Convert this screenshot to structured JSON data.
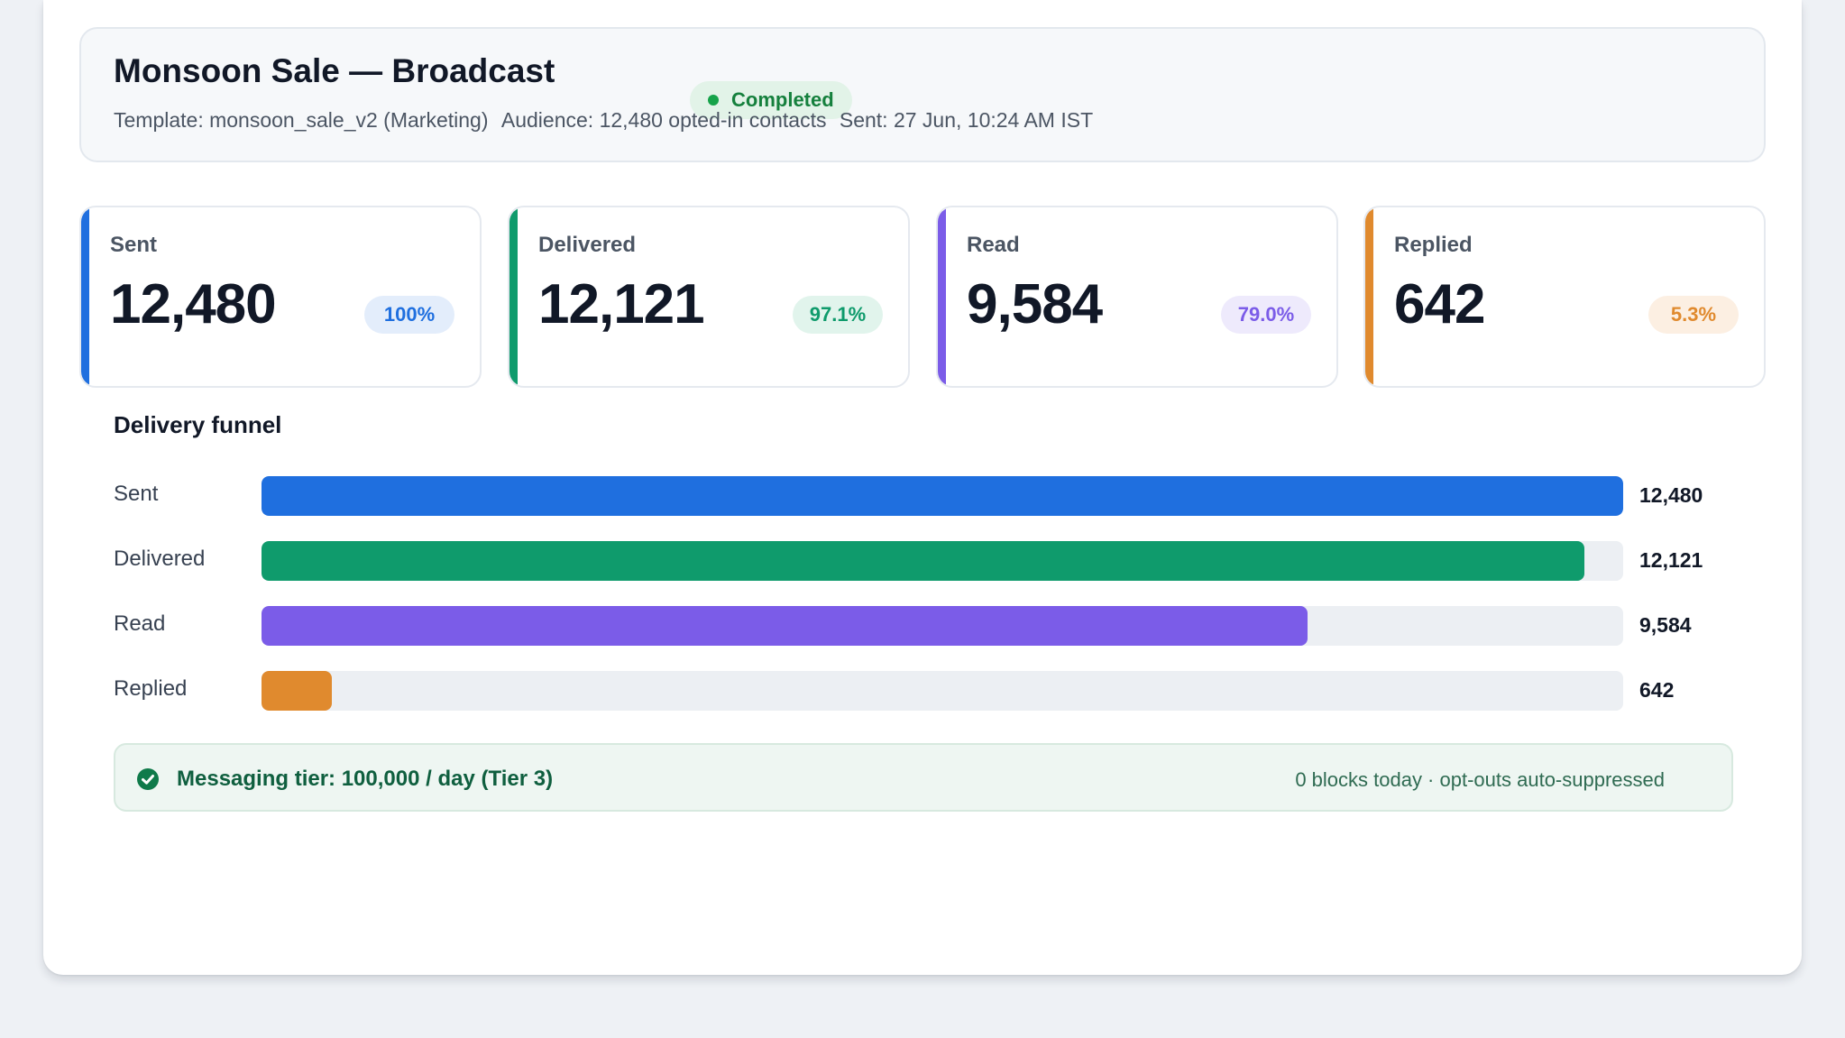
{
  "campaign": {
    "title": "Monsoon Sale — Broadcast",
    "status": "Completed",
    "template": "Template: monsoon_sale_v2 (Marketing)",
    "audience": "Audience: 12,480 opted-in contacts",
    "sent_at": "Sent: 27 Jun, 10:24 AM IST"
  },
  "stats": [
    {
      "label": "Sent",
      "value": "12,480",
      "badge": "100%",
      "color": "#1f6fdf",
      "badge_bg": "#e3edfb"
    },
    {
      "label": "Delivered",
      "value": "12,121",
      "badge": "97.1%",
      "color": "#0f9b6c",
      "badge_bg": "#e1f4ec"
    },
    {
      "label": "Read",
      "value": "9,584",
      "badge": "79.0%",
      "color": "#7b5ce8",
      "badge_bg": "#eeeafc"
    },
    {
      "label": "Replied",
      "value": "642",
      "badge": "5.3%",
      "color": "#e08a2e",
      "badge_bg": "#fcefe2"
    }
  ],
  "funnel": {
    "title": "Delivery funnel",
    "rows": [
      {
        "label": "Sent",
        "count": "12,480",
        "value": 12480,
        "color": "#1f6fdf"
      },
      {
        "label": "Delivered",
        "count": "12,121",
        "value": 12121,
        "color": "#0f9b6c"
      },
      {
        "label": "Read",
        "count": "9,584",
        "value": 9584,
        "color": "#7b5ce8"
      },
      {
        "label": "Replied",
        "count": "642",
        "value": 642,
        "color": "#e08a2e"
      }
    ],
    "max": 12480
  },
  "tier": {
    "message": "Messaging tier: 100,000 / day (Tier 3)",
    "note": "0 blocks today · opt-outs auto-suppressed",
    "icon": "check-circle-icon"
  }
}
